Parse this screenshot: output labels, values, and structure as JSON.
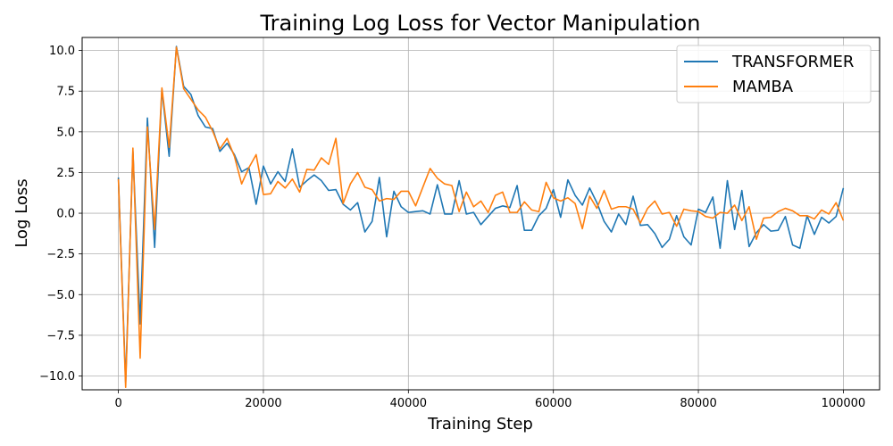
{
  "chart_data": {
    "type": "line",
    "title": "Training Log Loss for Vector Manipulation",
    "xlabel": "Training Step",
    "ylabel": "Log Loss",
    "xlim": [
      -5000,
      105000
    ],
    "ylim": [
      -10.85,
      10.8
    ],
    "xticks": [
      0,
      20000,
      40000,
      60000,
      80000,
      100000
    ],
    "yticks": [
      -10.0,
      -7.5,
      -5.0,
      -2.5,
      0.0,
      2.5,
      5.0,
      7.5,
      10.0
    ],
    "grid": true,
    "legend_position": "top-right",
    "x": [
      0,
      1000,
      2000,
      3000,
      4000,
      5000,
      6000,
      7000,
      8000,
      9000,
      10000,
      11000,
      12000,
      13000,
      14000,
      15000,
      16000,
      17000,
      18000,
      19000,
      20000,
      21000,
      22000,
      23000,
      24000,
      25000,
      26000,
      27000,
      28000,
      29000,
      30000,
      31000,
      32000,
      33000,
      34000,
      35000,
      36000,
      37000,
      38000,
      39000,
      40000,
      41000,
      42000,
      43000,
      44000,
      45000,
      46000,
      47000,
      48000,
      49000,
      50000,
      51000,
      52000,
      53000,
      54000,
      55000,
      56000,
      57000,
      58000,
      59000,
      60000,
      61000,
      62000,
      63000,
      64000,
      65000,
      66000,
      67000,
      68000,
      69000,
      70000,
      71000,
      72000,
      73000,
      74000,
      75000,
      76000,
      77000,
      78000,
      79000,
      80000,
      81000,
      82000,
      83000,
      84000,
      85000,
      86000,
      87000,
      88000,
      89000,
      90000,
      91000,
      92000,
      93000,
      94000,
      95000,
      96000,
      97000,
      98000,
      99000,
      100000
    ],
    "series": [
      {
        "name": "TRANSFORMER",
        "color": "#1f77b4",
        "values": [
          2.2,
          -10.4,
          3.8,
          -6.8,
          5.85,
          -2.1,
          7.6,
          3.5,
          10.25,
          7.8,
          7.3,
          6.0,
          5.3,
          5.2,
          3.8,
          4.3,
          3.6,
          2.55,
          2.8,
          0.55,
          2.9,
          1.8,
          2.55,
          1.95,
          3.95,
          1.6,
          2.0,
          2.35,
          2.0,
          1.4,
          1.45,
          0.55,
          0.2,
          0.65,
          -1.15,
          -0.5,
          2.2,
          -1.45,
          1.35,
          0.4,
          0.05,
          0.1,
          0.15,
          -0.05,
          1.75,
          -0.05,
          -0.05,
          2.0,
          -0.05,
          0.05,
          -0.7,
          -0.2,
          0.3,
          0.45,
          0.35,
          1.7,
          -1.05,
          -1.05,
          -0.15,
          0.3,
          1.45,
          -0.25,
          2.05,
          1.1,
          0.5,
          1.55,
          0.65,
          -0.5,
          -1.15,
          -0.05,
          -0.7,
          1.05,
          -0.75,
          -0.7,
          -1.25,
          -2.1,
          -1.6,
          -0.15,
          -1.45,
          -1.95,
          0.25,
          0.05,
          1.0,
          -2.15,
          2.0,
          -1.0,
          1.4,
          -2.05,
          -1.2,
          -0.7,
          -1.1,
          -1.05,
          -0.2,
          -1.95,
          -2.15,
          -0.15,
          -1.3,
          -0.25,
          -0.6,
          -0.2,
          1.55
        ]
      },
      {
        "name": "MAMBA",
        "color": "#ff7f0e",
        "values": [
          2.1,
          -10.7,
          4.0,
          -8.9,
          5.3,
          -1.0,
          7.7,
          4.05,
          10.2,
          7.65,
          7.0,
          6.35,
          5.9,
          5.05,
          3.95,
          4.6,
          3.5,
          1.8,
          2.8,
          3.6,
          1.15,
          1.2,
          1.95,
          1.55,
          2.1,
          1.3,
          2.7,
          2.65,
          3.4,
          3.0,
          4.6,
          0.6,
          1.8,
          2.5,
          1.6,
          1.45,
          0.75,
          0.9,
          0.85,
          1.35,
          1.35,
          0.45,
          1.6,
          2.75,
          2.15,
          1.8,
          1.7,
          0.1,
          1.3,
          0.4,
          0.75,
          0.05,
          1.1,
          1.3,
          0.05,
          0.05,
          0.7,
          0.2,
          0.1,
          1.9,
          0.95,
          0.75,
          0.95,
          0.6,
          -0.95,
          1.05,
          0.3,
          1.4,
          0.25,
          0.4,
          0.4,
          0.25,
          -0.6,
          0.3,
          0.75,
          -0.05,
          0.05,
          -0.8,
          0.25,
          0.15,
          0.1,
          -0.2,
          -0.3,
          0.05,
          0.0,
          0.5,
          -0.45,
          0.4,
          -1.6,
          -0.3,
          -0.25,
          0.1,
          0.3,
          0.15,
          -0.15,
          -0.15,
          -0.35,
          0.2,
          -0.05,
          0.65,
          -0.45
        ]
      }
    ]
  }
}
